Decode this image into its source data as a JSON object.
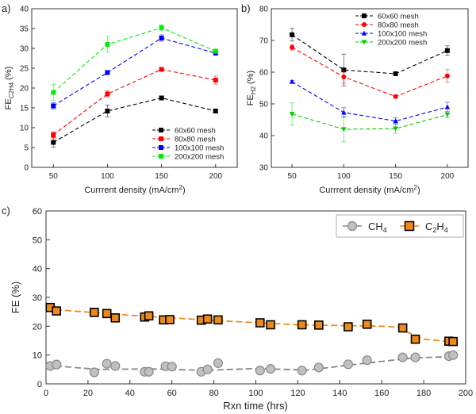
{
  "chart_data": [
    {
      "panel": "a)",
      "type": "line",
      "xlabel": "Currrent density (mA/cm",
      "xlabel_sup": "2",
      "xlabel_end": ")",
      "ylabel": "FE",
      "ylabel_sub": "C2H4",
      "ylabel_unit": " (%)",
      "xlim": [
        30,
        220
      ],
      "ylim": [
        0,
        40
      ],
      "xticks": [
        50,
        100,
        150,
        200
      ],
      "yticks": [
        0,
        5,
        10,
        15,
        20,
        25,
        30,
        35,
        40
      ],
      "legend_position": "bottom-right",
      "x": [
        50,
        100,
        150,
        200
      ],
      "series": [
        {
          "name": "60x60 mesh",
          "color": "#000000",
          "marker": "square",
          "values": [
            6.3,
            14.2,
            17.5,
            14.2
          ],
          "err": [
            1.2,
            1.5,
            0.3,
            0.3
          ]
        },
        {
          "name": "80x80 mesh",
          "color": "#ff0000",
          "marker": "square",
          "values": [
            8.2,
            18.5,
            24.7,
            22.0
          ],
          "err": [
            0.8,
            0.8,
            0.3,
            1.0
          ]
        },
        {
          "name": "100x100 mesh",
          "color": "#0000ff",
          "marker": "square",
          "values": [
            15.5,
            23.9,
            32.6,
            28.8
          ],
          "err": [
            0.8,
            0.5,
            0.8,
            0.4
          ]
        },
        {
          "name": "200x200 mesh",
          "color": "#00ee00",
          "marker": "square",
          "values": [
            18.9,
            31.0,
            35.2,
            29.3
          ],
          "err": [
            2.0,
            2.0,
            0.8,
            0.5
          ]
        }
      ]
    },
    {
      "panel": "b)",
      "type": "line",
      "xlabel": "Currrent density (mA/cm",
      "xlabel_sup": "2",
      "xlabel_end": ")",
      "ylabel": "FE",
      "ylabel_sub": "H2",
      "ylabel_unit": " (%)",
      "xlim": [
        30,
        220
      ],
      "ylim": [
        30,
        80
      ],
      "xticks": [
        50,
        100,
        150,
        200
      ],
      "yticks": [
        30,
        40,
        50,
        60,
        70,
        80
      ],
      "legend_position": "top-right",
      "x": [
        50,
        100,
        150,
        200
      ],
      "series": [
        {
          "name": "60x60 mesh",
          "color": "#000000",
          "marker": "square",
          "values": [
            71.8,
            60.7,
            59.5,
            66.8
          ],
          "err": [
            2.0,
            5.0,
            0.4,
            1.5
          ]
        },
        {
          "name": "80x80 mesh",
          "color": "#ff0000",
          "marker": "circle",
          "values": [
            67.8,
            58.5,
            52.3,
            58.8
          ],
          "err": [
            0.8,
            2.0,
            0.4,
            2.0
          ]
        },
        {
          "name": "100x100 mesh",
          "color": "#0000ff",
          "marker": "triangle-up",
          "values": [
            57.0,
            47.3,
            44.6,
            49.0
          ],
          "err": [
            0.4,
            1.5,
            1.0,
            1.5
          ]
        },
        {
          "name": "200x200 mesh",
          "color": "#00cc00",
          "marker": "triangle-down",
          "values": [
            46.8,
            42.0,
            42.2,
            46.6
          ],
          "err": [
            3.5,
            4.0,
            1.5,
            1.0
          ]
        }
      ]
    },
    {
      "panel": "c)",
      "type": "scatter",
      "xlabel": "Rxn time (hrs)",
      "ylabel": "FE  (%)",
      "xlim": [
        0,
        200
      ],
      "ylim": [
        0,
        60
      ],
      "xticks": [
        0,
        20,
        40,
        60,
        80,
        100,
        120,
        140,
        160,
        180,
        200
      ],
      "yticks": [
        0,
        10,
        20,
        30,
        40,
        50,
        60
      ],
      "legend_position": "top-right",
      "series": [
        {
          "name": "CH",
          "name_sub": "4",
          "color": "#c0c0c0",
          "marker": "circle",
          "x": [
            2,
            5,
            23,
            29,
            33,
            47,
            49,
            57,
            60,
            74,
            77,
            82,
            102,
            107,
            122,
            130,
            144,
            153,
            170,
            176,
            192,
            194
          ],
          "y": [
            6.2,
            6.7,
            4.0,
            7.0,
            6.2,
            4.2,
            4.2,
            6.1,
            6.0,
            4.2,
            5.0,
            7.2,
            4.6,
            5.2,
            4.6,
            5.7,
            6.8,
            8.2,
            9.2,
            9.2,
            9.6,
            10.0
          ],
          "trend_x": [
            0,
            25,
            50,
            75,
            100,
            125,
            150,
            175,
            195
          ],
          "trend_y": [
            6.5,
            5.0,
            5.2,
            4.7,
            5.3,
            4.8,
            7.0,
            9.0,
            9.5
          ]
        },
        {
          "name": "C",
          "name_sub": "2",
          "name_mid": "H",
          "name_sub2": "4",
          "color": "#ee8a1a",
          "marker": "square",
          "x": [
            2,
            5,
            23,
            29,
            33,
            47,
            49,
            56,
            59,
            74,
            77,
            82,
            102,
            107,
            122,
            130,
            144,
            153,
            170,
            176,
            192,
            194
          ],
          "y": [
            26.5,
            25.3,
            24.8,
            24.4,
            22.9,
            23.2,
            23.6,
            22.2,
            22.3,
            22.1,
            22.5,
            22.2,
            21.2,
            20.5,
            20.5,
            20.4,
            19.8,
            20.7,
            19.4,
            15.5,
            14.8,
            14.7
          ],
          "trend_x": [
            0,
            40,
            80,
            120,
            160,
            168,
            172,
            180,
            195
          ],
          "trend_y": [
            26.0,
            23.8,
            22.0,
            20.5,
            20.0,
            19.6,
            18.0,
            15.5,
            14.5
          ]
        }
      ]
    }
  ]
}
